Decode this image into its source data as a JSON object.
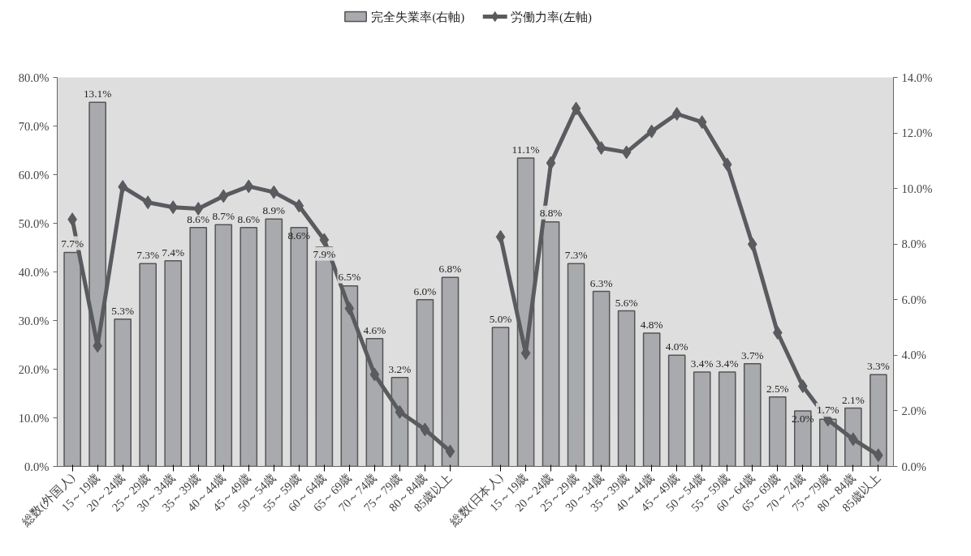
{
  "chart_data": {
    "type": "bar",
    "categories": [
      "総数(外国人)",
      "15～19歳",
      "20～24歳",
      "25～29歳",
      "30～34歳",
      "35～39歳",
      "40～44歳",
      "45～49歳",
      "50～54歳",
      "55～59歳",
      "60～64歳",
      "65～69歳",
      "70～74歳",
      "75～79歳",
      "80～84歳",
      "85歳以上",
      null,
      "総数(日本人)",
      "15～19歳",
      "20～24歳",
      "25～29歳",
      "30～34歳",
      "35～39歳",
      "40～44歳",
      "45～49歳",
      "50～54歳",
      "55～59歳",
      "60～64歳",
      "65～69歳",
      "70～74歳",
      "75～79歳",
      "80～84歳",
      "85歳以上"
    ],
    "series": [
      {
        "name": "完全失業率(右軸)",
        "axis": "y2",
        "color": "#a9aaae",
        "value_labels": [
          "7.7%",
          "13.1%",
          "5.3%",
          "7.3%",
          "7.4%",
          "8.6%",
          "8.7%",
          "8.6%",
          "8.9%",
          "8.6%",
          "7.9%",
          "6.5%",
          "4.6%",
          "3.2%",
          "6.0%",
          "6.8%",
          null,
          "5.0%",
          "11.1%",
          "8.8%",
          "7.3%",
          "6.3%",
          "5.6%",
          "4.8%",
          "4.0%",
          "3.4%",
          "3.4%",
          "3.7%",
          "2.5%",
          "2.0%",
          "1.7%",
          "2.1%",
          "3.3%"
        ],
        "values": [
          7.7,
          13.1,
          5.3,
          7.3,
          7.4,
          8.6,
          8.7,
          8.6,
          8.9,
          8.6,
          7.9,
          6.5,
          4.6,
          3.2,
          6.0,
          6.8,
          null,
          5.0,
          11.1,
          8.8,
          7.3,
          6.3,
          5.6,
          4.8,
          4.0,
          3.4,
          3.4,
          3.7,
          2.5,
          2.0,
          1.7,
          2.1,
          3.3
        ]
      },
      {
        "name": "労働力率(左軸)",
        "type": "line",
        "color": "#595b5e",
        "marker": "diamond",
        "values": [
          50.8,
          24.8,
          57.5,
          54.3,
          53.3,
          53.0,
          55.6,
          57.6,
          56.4,
          53.6,
          46.6,
          32.5,
          18.9,
          11.2,
          7.6,
          3.1,
          null,
          47.2,
          23.3,
          62.4,
          73.6,
          65.5,
          64.6,
          68.9,
          72.5,
          70.8,
          62.1,
          45.7,
          27.5,
          16.5,
          9.6,
          5.6,
          2.3
        ]
      }
    ],
    "ylim": [
      0,
      80
    ],
    "yticks": [
      {
        "value": 0,
        "label": "0.0%"
      },
      {
        "value": 10,
        "label": "10.0%"
      },
      {
        "value": 20,
        "label": "20.0%"
      },
      {
        "value": 30,
        "label": "30.0%"
      },
      {
        "value": 40,
        "label": "40.0%"
      },
      {
        "value": 50,
        "label": "50.0%"
      },
      {
        "value": 60,
        "label": "60.0%"
      },
      {
        "value": 70,
        "label": "70.0%"
      },
      {
        "value": 80,
        "label": "80.0%"
      }
    ],
    "y2lim": [
      0,
      14
    ],
    "y2ticks": [
      {
        "value": 0,
        "label": "0.0%"
      },
      {
        "value": 2,
        "label": "2.0%"
      },
      {
        "value": 4,
        "label": "4.0%"
      },
      {
        "value": 6,
        "label": "6.0%"
      },
      {
        "value": 8,
        "label": "8.0%"
      },
      {
        "value": 10,
        "label": "10.0%"
      },
      {
        "value": 12,
        "label": "12.0%"
      },
      {
        "value": 14,
        "label": "14.0%"
      }
    ],
    "grid": false,
    "legend": "top"
  }
}
